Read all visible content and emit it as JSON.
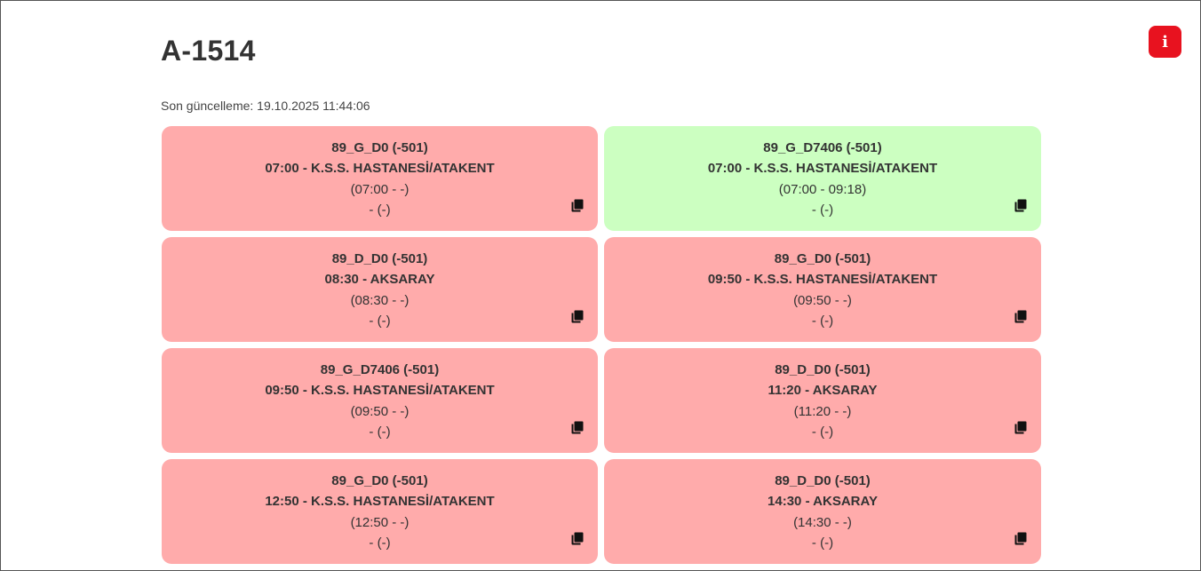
{
  "header": {
    "title": "A-1514",
    "last_update": "Son güncelleme: 19.10.2025 11:44:06",
    "info_icon": "info-icon",
    "info_label": "i"
  },
  "colors": {
    "card_red": "#ffabab",
    "card_green": "#ccffc1",
    "info_red": "#e8121f"
  },
  "cards": [
    {
      "status": "red",
      "code": "89_G_D0 (-501)",
      "departure": "07:00 - K.S.S. HASTANESİ/ATAKENT",
      "times": "(07:00 - -)",
      "extra": "- (-)",
      "icon": "copy-icon"
    },
    {
      "status": "green",
      "code": "89_G_D7406 (-501)",
      "departure": "07:00 - K.S.S. HASTANESİ/ATAKENT",
      "times": "(07:00 - 09:18)",
      "extra": "- (-)",
      "icon": "copy-icon"
    },
    {
      "status": "red",
      "code": "89_D_D0 (-501)",
      "departure": "08:30 - AKSARAY",
      "times": "(08:30 - -)",
      "extra": "- (-)",
      "icon": "copy-icon"
    },
    {
      "status": "red",
      "code": "89_G_D0 (-501)",
      "departure": "09:50 - K.S.S. HASTANESİ/ATAKENT",
      "times": "(09:50 - -)",
      "extra": "- (-)",
      "icon": "copy-icon"
    },
    {
      "status": "red",
      "code": "89_G_D7406 (-501)",
      "departure": "09:50 - K.S.S. HASTANESİ/ATAKENT",
      "times": "(09:50 - -)",
      "extra": "- (-)",
      "icon": "copy-icon"
    },
    {
      "status": "red",
      "code": "89_D_D0 (-501)",
      "departure": "11:20 - AKSARAY",
      "times": "(11:20 - -)",
      "extra": "- (-)",
      "icon": "copy-icon"
    },
    {
      "status": "red",
      "code": "89_G_D0 (-501)",
      "departure": "12:50 - K.S.S. HASTANESİ/ATAKENT",
      "times": "(12:50 - -)",
      "extra": "- (-)",
      "icon": "copy-icon"
    },
    {
      "status": "red",
      "code": "89_D_D0 (-501)",
      "departure": "14:30 - AKSARAY",
      "times": "(14:30 - -)",
      "extra": "- (-)",
      "icon": "copy-icon"
    }
  ]
}
